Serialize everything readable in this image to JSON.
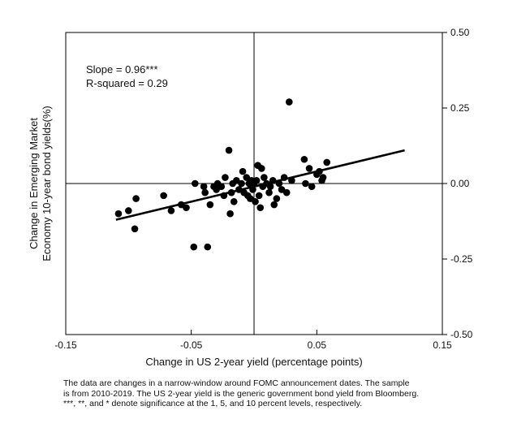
{
  "chart_data": {
    "type": "scatter",
    "title": "",
    "xlabel": "Change in US 2-year yield (percentage points)",
    "ylabel_lines": [
      "Change in Emerging Market",
      "Economy 10-year bond yields(%)"
    ],
    "xlim": [
      -0.15,
      0.15
    ],
    "ylim": [
      -0.5,
      0.5
    ],
    "x_ticks": [
      -0.15,
      -0.05,
      0.05,
      0.15
    ],
    "x_tick_labels": [
      "-0.15",
      "-0.05",
      "0.05",
      "0.15"
    ],
    "y_ticks": [
      -0.5,
      -0.25,
      0.0,
      0.25,
      0.5
    ],
    "y_tick_labels": [
      "-0.50",
      "-0.25",
      "0.00",
      "0.25",
      "0.50"
    ],
    "y_axis_position": "right",
    "reference_lines": {
      "x": 0,
      "y": 0
    },
    "annotations": [
      "Slope = 0.96***",
      "R-squared = 0.29"
    ],
    "fit_line": {
      "x": [
        -0.11,
        0.12
      ],
      "y": [
        -0.12,
        0.11
      ]
    },
    "points": [
      {
        "x": -0.108,
        "y": -0.1
      },
      {
        "x": -0.1,
        "y": -0.09
      },
      {
        "x": -0.095,
        "y": -0.15
      },
      {
        "x": -0.094,
        "y": -0.05
      },
      {
        "x": -0.072,
        "y": -0.04
      },
      {
        "x": -0.066,
        "y": -0.09
      },
      {
        "x": -0.058,
        "y": -0.07
      },
      {
        "x": -0.054,
        "y": -0.08
      },
      {
        "x": -0.048,
        "y": -0.21
      },
      {
        "x": -0.047,
        "y": 0.0
      },
      {
        "x": -0.04,
        "y": -0.01
      },
      {
        "x": -0.039,
        "y": -0.03
      },
      {
        "x": -0.037,
        "y": -0.21
      },
      {
        "x": -0.035,
        "y": -0.07
      },
      {
        "x": -0.032,
        "y": -0.01
      },
      {
        "x": -0.03,
        "y": -0.02
      },
      {
        "x": -0.029,
        "y": 0.0
      },
      {
        "x": -0.026,
        "y": -0.01
      },
      {
        "x": -0.024,
        "y": -0.04
      },
      {
        "x": -0.023,
        "y": 0.02
      },
      {
        "x": -0.02,
        "y": 0.11
      },
      {
        "x": -0.019,
        "y": -0.1
      },
      {
        "x": -0.018,
        "y": -0.03
      },
      {
        "x": -0.017,
        "y": 0.0
      },
      {
        "x": -0.016,
        "y": -0.06
      },
      {
        "x": -0.014,
        "y": 0.01
      },
      {
        "x": -0.012,
        "y": -0.02
      },
      {
        "x": -0.01,
        "y": 0.0
      },
      {
        "x": -0.009,
        "y": 0.04
      },
      {
        "x": -0.008,
        "y": -0.03
      },
      {
        "x": -0.006,
        "y": 0.02
      },
      {
        "x": -0.005,
        "y": -0.04
      },
      {
        "x": -0.004,
        "y": 0.0
      },
      {
        "x": -0.003,
        "y": -0.05
      },
      {
        "x": -0.002,
        "y": 0.01
      },
      {
        "x": -0.001,
        "y": -0.02
      },
      {
        "x": 0.0,
        "y": 0.0
      },
      {
        "x": 0.001,
        "y": -0.06
      },
      {
        "x": 0.002,
        "y": 0.01
      },
      {
        "x": 0.003,
        "y": 0.06
      },
      {
        "x": 0.004,
        "y": -0.04
      },
      {
        "x": 0.005,
        "y": -0.08
      },
      {
        "x": 0.006,
        "y": 0.05
      },
      {
        "x": 0.007,
        "y": -0.01
      },
      {
        "x": 0.008,
        "y": 0.02
      },
      {
        "x": 0.01,
        "y": 0.0
      },
      {
        "x": 0.012,
        "y": -0.03
      },
      {
        "x": 0.013,
        "y": -0.01
      },
      {
        "x": 0.015,
        "y": 0.01
      },
      {
        "x": 0.016,
        "y": -0.07
      },
      {
        "x": 0.018,
        "y": -0.05
      },
      {
        "x": 0.02,
        "y": 0.0
      },
      {
        "x": 0.022,
        "y": -0.02
      },
      {
        "x": 0.024,
        "y": 0.02
      },
      {
        "x": 0.026,
        "y": -0.03
      },
      {
        "x": 0.028,
        "y": 0.27
      },
      {
        "x": 0.03,
        "y": 0.01
      },
      {
        "x": 0.04,
        "y": 0.08
      },
      {
        "x": 0.041,
        "y": 0.0
      },
      {
        "x": 0.044,
        "y": 0.05
      },
      {
        "x": 0.046,
        "y": -0.01
      },
      {
        "x": 0.05,
        "y": 0.03
      },
      {
        "x": 0.052,
        "y": 0.04
      },
      {
        "x": 0.054,
        "y": 0.01
      },
      {
        "x": 0.055,
        "y": 0.02
      },
      {
        "x": 0.058,
        "y": 0.07
      }
    ]
  },
  "note": {
    "lines": [
      "The data are changes in a narrow-window around FOMC announcement dates. The sample",
      "is from 2010-2019. The US 2-year yield is the generic government bond yield from Bloomberg.",
      " ***, **, and * denote significance at the 1, 5, and 10 percent levels, respectively."
    ]
  }
}
